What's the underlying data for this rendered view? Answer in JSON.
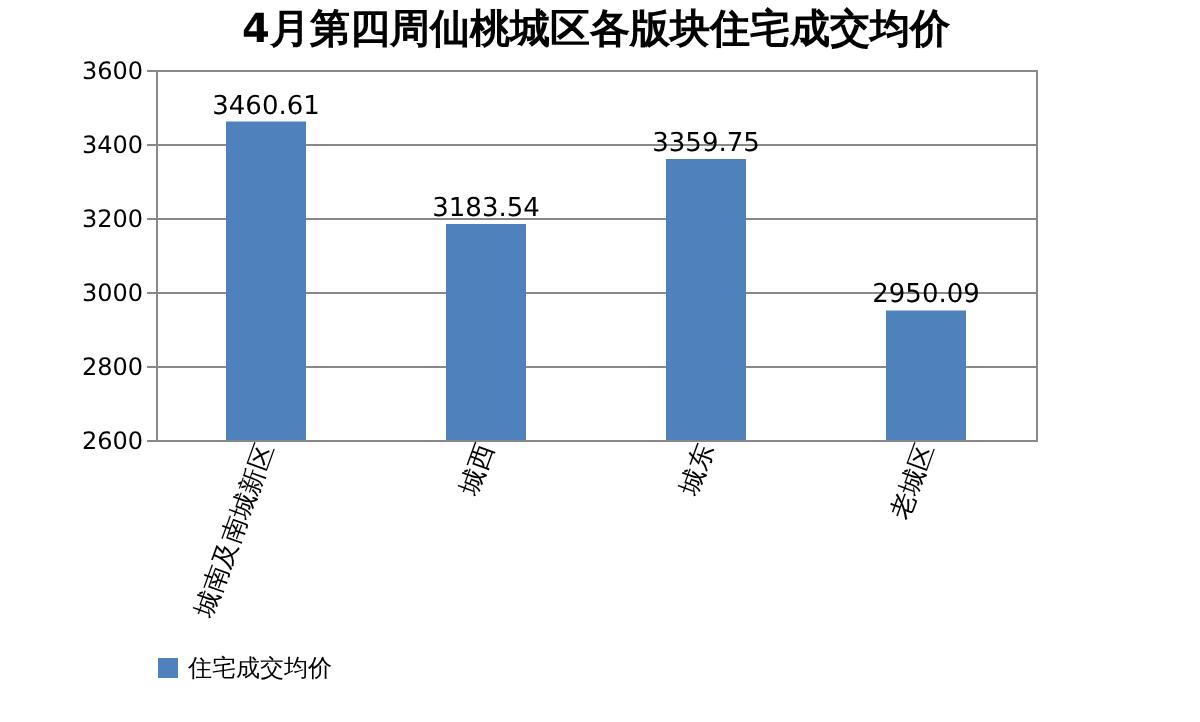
{
  "chart_data": {
    "type": "bar",
    "title": "4月第四周仙桃城区各版块住宅成交均价",
    "categories": [
      "城南及南城新区",
      "城西",
      "城东",
      "老城区"
    ],
    "series": [
      {
        "name": "住宅成交均价",
        "color": "#4f81bd",
        "values": [
          3460.61,
          3183.54,
          3359.75,
          2950.09
        ]
      }
    ],
    "ylim": [
      2600,
      3600
    ],
    "yticks": [
      2600,
      2800,
      3000,
      3200,
      3400,
      3600
    ],
    "grid": "y",
    "data_labels": true,
    "legend": "bottom"
  }
}
